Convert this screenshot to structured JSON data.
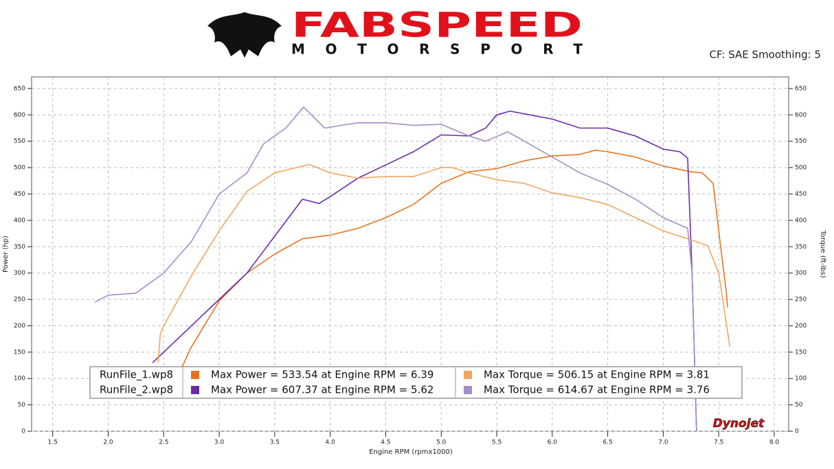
{
  "header": {
    "brand": "FABSPEED",
    "tagline": "MOTORSPORT",
    "settings": "CF: SAE Smoothing: 5"
  },
  "chart_data": {
    "type": "line",
    "x_label": "Engine RPM (rpmx1000)",
    "y_label": "Power (hp)",
    "y2_label": "Torque (ft-lbs)",
    "watermark": "Dynojet",
    "xlim": [
      1.31,
      8.13
    ],
    "ylim": [
      0,
      672
    ],
    "y2lim": [
      0,
      672
    ],
    "grid": true,
    "xticks": [
      1.5,
      {
        "value": 2,
        "label": "2.0"
      },
      2.5,
      {
        "value": 3,
        "label": "3.0"
      },
      3.5,
      {
        "value": 4,
        "label": "4.0"
      },
      4.5,
      {
        "value": 5,
        "label": "5.0"
      },
      5.5,
      {
        "value": 6,
        "label": "6.0"
      },
      6.5,
      {
        "value": 7,
        "label": "7.0"
      },
      7.5,
      {
        "value": 8,
        "label": "8.0"
      }
    ],
    "yticks": [
      0,
      50,
      100,
      150,
      200,
      250,
      300,
      350,
      400,
      450,
      500,
      550,
      600,
      650
    ],
    "y2ticks": [
      0,
      50,
      100,
      150,
      200,
      250,
      300,
      350,
      400,
      450,
      500,
      550,
      600,
      650
    ],
    "runs": [
      "RunFile_1.wp8",
      "RunFile_2.wp8"
    ],
    "series": [
      {
        "name": "Max Power = 533.54 at Engine RPM = 6.39",
        "color": "#e8731e",
        "x": [
          2.65,
          2.75,
          3.0,
          3.25,
          3.5,
          3.75,
          4.0,
          4.25,
          4.5,
          4.75,
          5.0,
          5.25,
          5.5,
          5.75,
          6.0,
          6.25,
          6.39,
          6.5,
          6.75,
          7.0,
          7.25,
          7.35,
          7.45,
          7.5,
          7.57,
          7.58
        ],
        "values": [
          115,
          160,
          247,
          300,
          336,
          365,
          372,
          385,
          405,
          430,
          470,
          492,
          498,
          513,
          522,
          525,
          533,
          530,
          520,
          503,
          492,
          490,
          470,
          380,
          260,
          235
        ]
      },
      {
        "name": "Max Power = 607.37 at Engine RPM = 5.62",
        "color": "#6b2aa8",
        "x": [
          2.4,
          2.5,
          2.75,
          3.0,
          3.25,
          3.5,
          3.75,
          3.9,
          4.0,
          4.25,
          4.5,
          4.75,
          5.0,
          5.25,
          5.4,
          5.5,
          5.62,
          5.75,
          6.0,
          6.25,
          6.5,
          6.75,
          7.0,
          7.15,
          7.22,
          7.26,
          7.3
        ],
        "values": [
          130,
          150,
          200,
          250,
          300,
          370,
          440,
          432,
          445,
          480,
          505,
          530,
          562,
          560,
          575,
          600,
          607,
          602,
          592,
          575,
          575,
          560,
          535,
          530,
          518,
          300,
          0
        ]
      },
      {
        "name": "Max Torque = 506.15 at Engine RPM = 3.81",
        "color": "#f3a55e",
        "axis": "y2",
        "x": [
          2.45,
          2.47,
          2.5,
          2.75,
          3.0,
          3.25,
          3.5,
          3.81,
          4.0,
          4.25,
          4.5,
          4.75,
          5.0,
          5.1,
          5.25,
          5.5,
          5.75,
          6.0,
          6.25,
          6.5,
          6.75,
          7.0,
          7.25,
          7.4,
          7.5,
          7.6
        ],
        "values": [
          130,
          185,
          200,
          295,
          380,
          455,
          490,
          506,
          490,
          480,
          483,
          483,
          500,
          500,
          490,
          477,
          470,
          452,
          443,
          430,
          405,
          380,
          363,
          352,
          300,
          160
        ]
      },
      {
        "name": "Max Torque = 614.67 at Engine RPM = 3.76",
        "color": "#a68bc8",
        "axis": "y2",
        "x": [
          1.88,
          2.0,
          2.25,
          2.5,
          2.75,
          3.0,
          3.25,
          3.4,
          3.6,
          3.76,
          3.95,
          4.25,
          4.5,
          4.75,
          5.0,
          5.25,
          5.4,
          5.6,
          5.75,
          6.0,
          6.25,
          6.5,
          6.75,
          7.0,
          7.22,
          7.26,
          7.3
        ],
        "values": [
          245,
          258,
          262,
          300,
          360,
          450,
          490,
          545,
          575,
          615,
          575,
          585,
          585,
          580,
          582,
          560,
          550,
          568,
          550,
          520,
          490,
          468,
          440,
          405,
          385,
          300,
          0
        ]
      }
    ]
  }
}
